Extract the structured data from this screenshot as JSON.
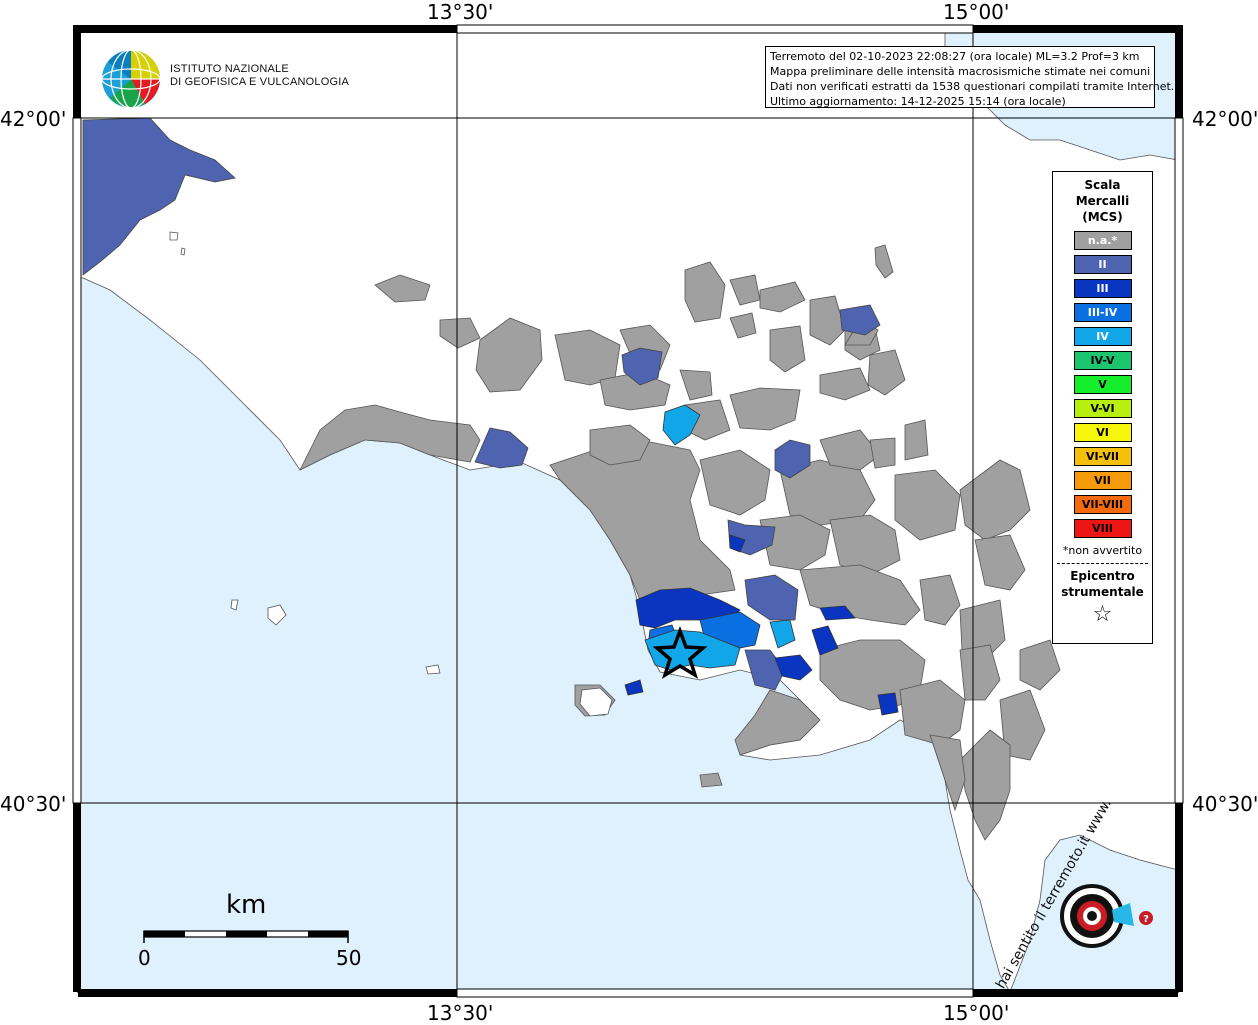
{
  "info": {
    "line1": "Terremoto del 02-10-2023 22:08:27 (ora locale) ML=3.2 Prof=3 km",
    "line2": "Mappa preliminare delle intensità macrosismiche stimate nei comuni",
    "line3": "Dati non verificati estratti da 1538 questionari compilati tramite Internet.",
    "line4": "Ultimo aggiornamento: 14-12-2025 15:14 (ora locale)"
  },
  "logo": {
    "line1": "ISTITUTO NAZIONALE",
    "line2": "DI GEOFISICA E VULCANOLOGIA"
  },
  "coordinates": {
    "top_left": "13°30'",
    "top_right": "15°00'",
    "bottom_left": "13°30'",
    "bottom_right": "15°00'",
    "left_top": "42°00'",
    "right_top": "42°00'",
    "left_bottom": "40°30'",
    "right_bottom": "40°30'"
  },
  "legend": {
    "title_line1": "Scala",
    "title_line2": "Mercalli",
    "title_line3": "(MCS)",
    "items": [
      {
        "label": "n.a.*",
        "color": "#a0a0a0",
        "text": "#ffffff"
      },
      {
        "label": "II",
        "color": "#4f64b0",
        "text": "#ffffff"
      },
      {
        "label": "III",
        "color": "#0a35c0",
        "text": "#ffffff"
      },
      {
        "label": "III-IV",
        "color": "#0a6fe0",
        "text": "#ffffff"
      },
      {
        "label": "IV",
        "color": "#11a6e8",
        "text": "#ffffff"
      },
      {
        "label": "IV-V",
        "color": "#1dc56f",
        "text": "#000000"
      },
      {
        "label": "V",
        "color": "#15ee2d",
        "text": "#000000"
      },
      {
        "label": "V-VI",
        "color": "#b7ef0e",
        "text": "#000000"
      },
      {
        "label": "VI",
        "color": "#f6f60b",
        "text": "#000000"
      },
      {
        "label": "VI-VII",
        "color": "#f4c00b",
        "text": "#000000"
      },
      {
        "label": "VII",
        "color": "#f59a0a",
        "text": "#000000"
      },
      {
        "label": "VII-VIII",
        "color": "#f56a0c",
        "text": "#000000"
      },
      {
        "label": "VIII",
        "color": "#ee1515",
        "text": "#000000"
      }
    ],
    "note": "*non avvertito",
    "epicenter_line1": "Epicentro",
    "epicenter_line2": "strumentale",
    "star": "☆"
  },
  "scalebar": {
    "unit": "km",
    "min": "0",
    "max": "50"
  },
  "colors": {
    "sea": "#dff1fc",
    "land": "#ffffff",
    "na": "#a0a0a0",
    "grid": "#000000"
  },
  "watermark": "hai sentito il terremoto.it www."
}
